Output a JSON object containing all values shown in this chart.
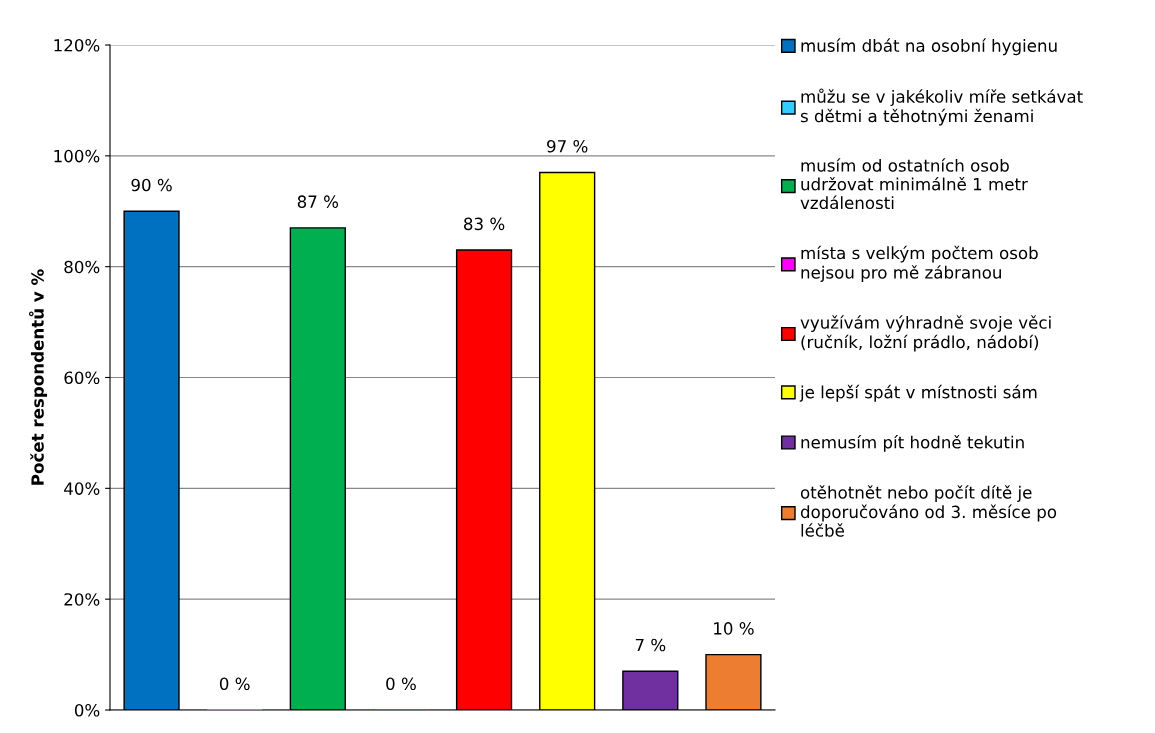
{
  "chart_data": {
    "type": "bar",
    "ylabel": "Počet respondentů v %",
    "categories": [
      null,
      null,
      null,
      null,
      null,
      null,
      null,
      null
    ],
    "series": [
      {
        "name": "musím dbát na osobní hygienu",
        "color": "#0070c0",
        "values": [
          90,
          null,
          null,
          null,
          null,
          null,
          null,
          null
        ],
        "value_labels": [
          "90 %",
          null,
          null,
          null,
          null,
          null,
          null,
          null
        ]
      },
      {
        "name": "můžu se v jakékoliv míře setkávat\ns dětmi a těhotnými ženami",
        "color": "#33ccff",
        "values": [
          null,
          0,
          null,
          null,
          null,
          null,
          null,
          null
        ],
        "value_labels": [
          null,
          "0 %",
          null,
          null,
          null,
          null,
          null,
          null
        ]
      },
      {
        "name": "musím od ostatních osob\nudržovat minimálně 1 metr\nvzdálenosti",
        "color": "#00b050",
        "values": [
          null,
          null,
          87,
          null,
          null,
          null,
          null,
          null
        ],
        "value_labels": [
          null,
          null,
          "87 %",
          null,
          null,
          null,
          null,
          null
        ]
      },
      {
        "name": "místa s velkým počtem osob\nnejsou pro mě zábranou",
        "color": "#ff00ff",
        "values": [
          null,
          null,
          null,
          0,
          null,
          null,
          null,
          null
        ],
        "value_labels": [
          null,
          null,
          null,
          "0 %",
          null,
          null,
          null,
          null
        ]
      },
      {
        "name": "využívám výhradně svoje věci\n(ručník, ložní prádlo, nádobí)",
        "color": "#ff0000",
        "values": [
          null,
          null,
          null,
          null,
          83,
          null,
          null,
          null
        ],
        "value_labels": [
          null,
          null,
          null,
          null,
          "83 %",
          null,
          null,
          null
        ]
      },
      {
        "name": "je lepší spát v místnosti sám",
        "color": "#ffff00",
        "values": [
          null,
          null,
          null,
          null,
          null,
          97,
          null,
          null
        ],
        "value_labels": [
          null,
          null,
          null,
          null,
          null,
          "97 %",
          null,
          null
        ]
      },
      {
        "name": "nemusím pít hodně tekutin",
        "color": "#7030a0",
        "values": [
          null,
          null,
          null,
          null,
          null,
          null,
          7,
          null
        ],
        "value_labels": [
          null,
          null,
          null,
          null,
          null,
          null,
          "7 %",
          null
        ]
      },
      {
        "name": "otěhotnět nebo počít dítě je\ndoporučováno od 3. měsíce po\nléčbě",
        "color": "#ed7d31",
        "values": [
          null,
          null,
          null,
          null,
          null,
          null,
          null,
          10
        ],
        "value_labels": [
          null,
          null,
          null,
          null,
          null,
          null,
          null,
          "10 %"
        ]
      }
    ],
    "ylim": [
      0,
      120
    ],
    "yticks": [
      {
        "value": 0,
        "label": "0%"
      },
      {
        "value": 20,
        "label": "20%"
      },
      {
        "value": 40,
        "label": "40%"
      },
      {
        "value": 60,
        "label": "60%"
      },
      {
        "value": 80,
        "label": "80%"
      },
      {
        "value": 100,
        "label": "100%"
      },
      {
        "value": 120,
        "label": "120%"
      }
    ],
    "grid": "y",
    "legend": "right",
    "tick_labels": "y"
  }
}
